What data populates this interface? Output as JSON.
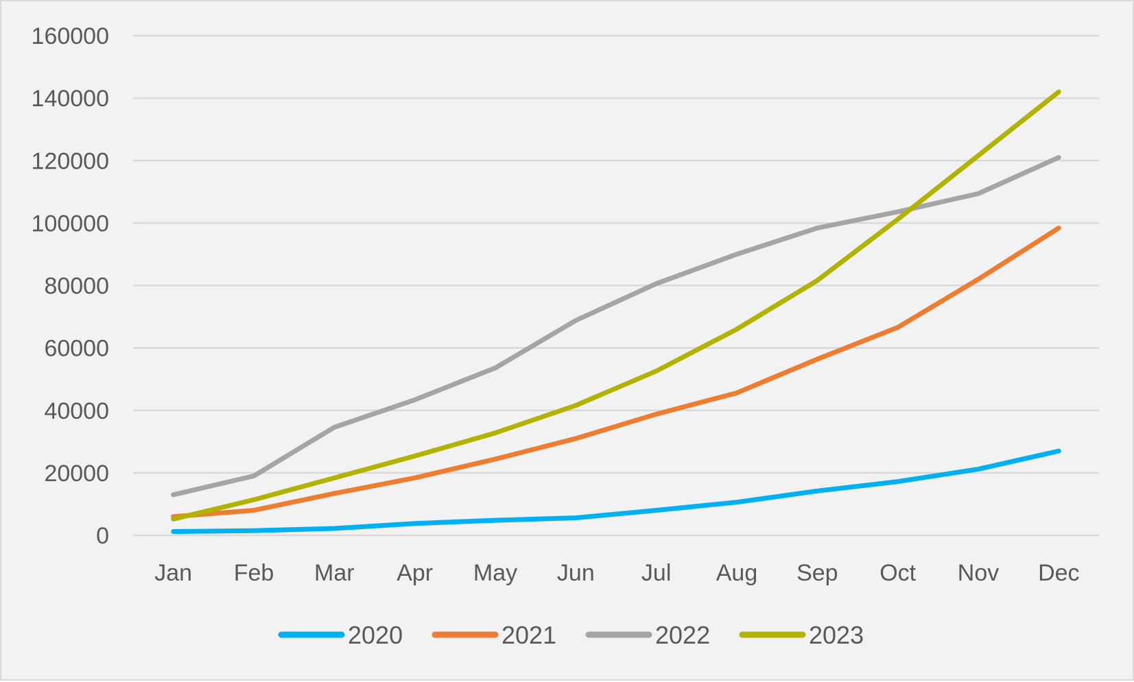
{
  "chart_data": {
    "type": "line",
    "title": "",
    "xlabel": "",
    "ylabel": "",
    "categories": [
      "Jan",
      "Feb",
      "Mar",
      "Apr",
      "May",
      "Jun",
      "Jul",
      "Aug",
      "Sep",
      "Oct",
      "Nov",
      "Dec"
    ],
    "ylim": [
      0,
      160000
    ],
    "yticks": [
      "0",
      "20000",
      "40000",
      "60000",
      "80000",
      "100000",
      "120000",
      "140000",
      "160000"
    ],
    "ytick_values": [
      0,
      20000,
      40000,
      60000,
      80000,
      100000,
      120000,
      140000,
      160000
    ],
    "grid": true,
    "legend_position": "bottom",
    "series": [
      {
        "name": "2020",
        "color": "#00b0f0",
        "values": [
          1200,
          1500,
          2200,
          3800,
          4800,
          5600,
          8000,
          10600,
          14200,
          17200,
          21200,
          27000
        ]
      },
      {
        "name": "2021",
        "color": "#ed7d31",
        "values": [
          6000,
          8000,
          13400,
          18400,
          24400,
          31000,
          38800,
          45600,
          56400,
          66600,
          82000,
          98400
        ]
      },
      {
        "name": "2022",
        "color": "#a5a5a5",
        "values": [
          13000,
          19000,
          34600,
          43400,
          53600,
          68800,
          80600,
          90000,
          98400,
          103600,
          109400,
          121000
        ]
      },
      {
        "name": "2023",
        "color": "#b2b300",
        "values": [
          5200,
          11400,
          18400,
          25400,
          32800,
          41600,
          52600,
          66000,
          81600,
          101200,
          121600,
          142000
        ]
      }
    ]
  }
}
